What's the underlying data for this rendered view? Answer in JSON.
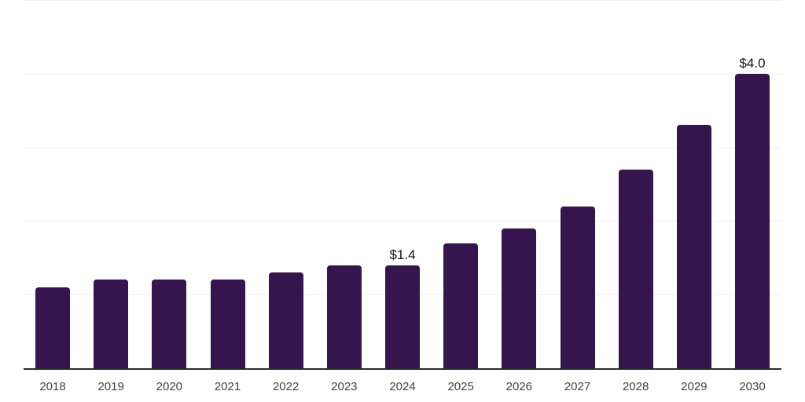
{
  "chart_data": {
    "type": "bar",
    "title": "",
    "categories": [
      "2018",
      "2019",
      "2020",
      "2021",
      "2022",
      "2023",
      "2024",
      "2025",
      "2026",
      "2027",
      "2028",
      "2029",
      "2030"
    ],
    "values": [
      1.1,
      1.2,
      1.2,
      1.2,
      1.3,
      1.4,
      1.4,
      1.7,
      1.9,
      2.2,
      2.7,
      3.3,
      4.0
    ],
    "data_labels": {
      "2024": "$1.4",
      "2030": "$4.0"
    },
    "xlabel": "",
    "ylabel": "",
    "ylim": [
      0,
      5
    ],
    "gridline_values": [
      1,
      2,
      3,
      4,
      5
    ],
    "grid": true,
    "legend": "none",
    "y_axis_tick_labels_visible": false,
    "colors": {
      "bar_fill": "#36154e",
      "axis_line": "#2b2b2b",
      "gridline": "#f0f0f0",
      "tick_label": "#404040",
      "data_label": "#141414",
      "background": "#ffffff"
    }
  }
}
